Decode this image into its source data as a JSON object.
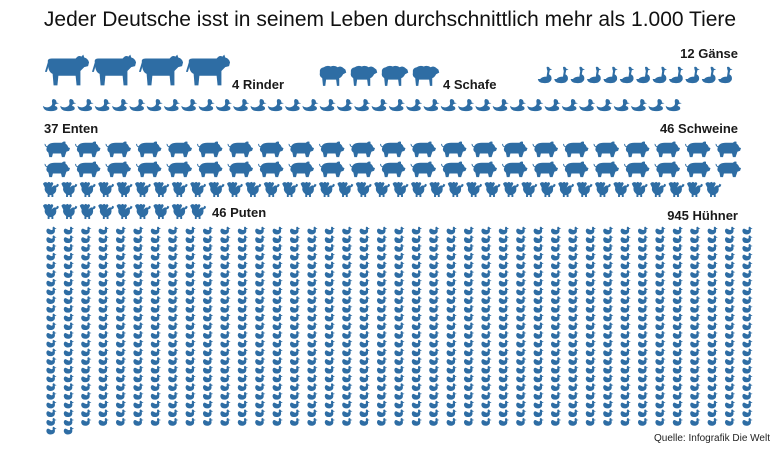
{
  "title": "Jeder Deutsche isst in seinem Leben durchschnittlich mehr als 1.000 Tiere",
  "source": "Quelle: Infografik Die Welt",
  "icon_color": "#2e6da4",
  "chart_data": {
    "type": "pictograph",
    "title": "Jeder Deutsche isst in seinem Leben durchschnittlich mehr als 1.000 Tiere",
    "categories": [
      "Rinder",
      "Schafe",
      "Gänse",
      "Enten",
      "Schweine",
      "Puten",
      "Hühner"
    ],
    "values": [
      4,
      4,
      12,
      37,
      46,
      46,
      945
    ],
    "labels": {
      "cattle": "4 Rinder",
      "sheep": "4 Schafe",
      "geese": "12 Gänse",
      "ducks": "37 Enten",
      "pigs": "46 Schweine",
      "turkeys": "46 Puten",
      "chickens": "945 Hühner"
    },
    "icons": {
      "cattle": "cow-icon",
      "sheep": "sheep-icon",
      "geese": "goose-icon",
      "ducks": "duck-icon",
      "pigs": "pig-icon",
      "turkeys": "turkey-icon",
      "chickens": "chicken-icon"
    }
  }
}
